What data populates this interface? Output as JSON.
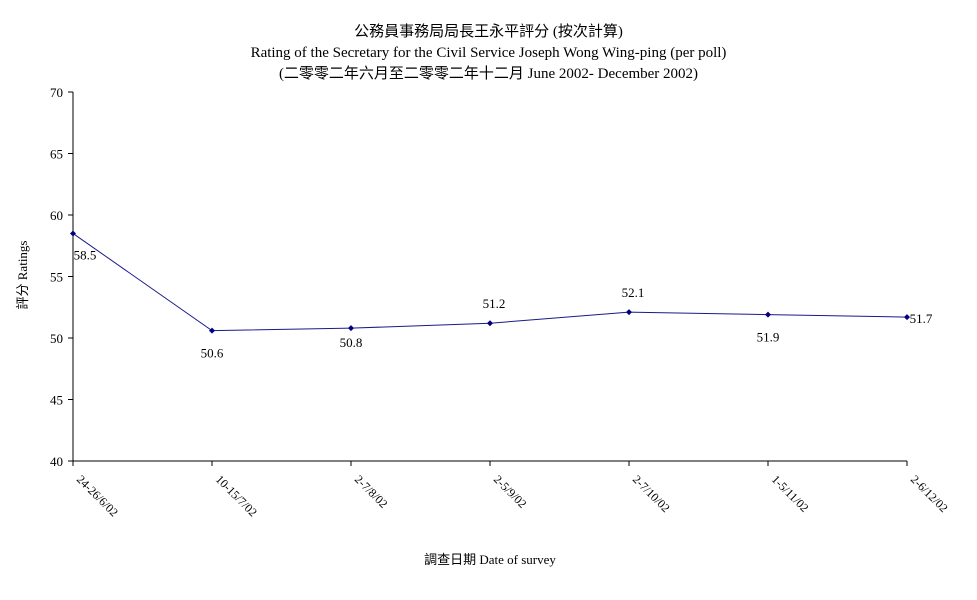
{
  "chart_data": {
    "type": "line",
    "title": "公務員事務局局長王永平評分 (按次計算)",
    "subtitle": "Rating of the Secretary for the Civil Service Joseph Wong Wing-ping  (per poll)",
    "subtitle2": "(二零零二年六月至二零零二年十二月 June 2002- December 2002)",
    "xlabel": "調查日期 Date of survey",
    "ylabel": "評分 Ratings",
    "categories": [
      "24-26/6/02",
      "10-15/7/02",
      "2-7/8/02",
      "2-5/9/02",
      "2-7/10/02",
      "1-5/11/02",
      "2-6/12/02"
    ],
    "values": [
      58.5,
      50.6,
      50.8,
      51.2,
      52.1,
      51.9,
      51.7
    ],
    "data_labels": [
      "58.5",
      "50.6",
      "50.8",
      "51.2",
      "52.1",
      "51.9",
      "51.7"
    ],
    "ylim": [
      40,
      70
    ],
    "yticks": [
      40,
      45,
      50,
      55,
      60,
      65,
      70
    ],
    "grid": false,
    "legend": "none",
    "line_color": "#1a1a8c",
    "marker_color": "#000080"
  }
}
